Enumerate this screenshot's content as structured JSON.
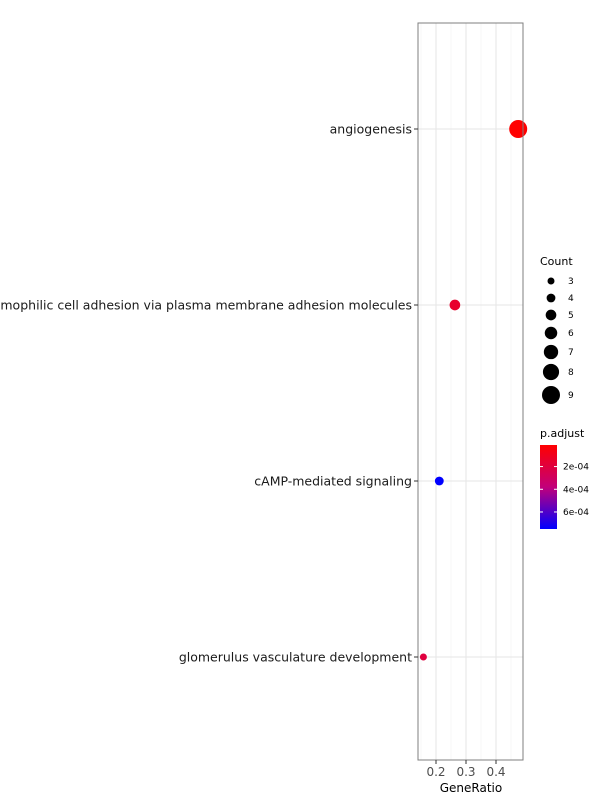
{
  "chart_data": {
    "type": "scatter",
    "title": "",
    "xlabel": "GeneRatio",
    "ylabel": "",
    "xlim": [
      0.14,
      0.49
    ],
    "x_ticks": [
      0.2,
      0.3,
      0.4
    ],
    "x_tick_labels": [
      "0.2",
      "0.3",
      "0.4"
    ],
    "grid": true,
    "categories": [
      "angiogenesis",
      "homophilic cell adhesion via plasma membrane adhesion molecules",
      "cAMP-mediated signaling",
      "glomerulus vasculature development"
    ],
    "points": [
      {
        "term": "angiogenesis",
        "gene_ratio": 0.474,
        "count": 9,
        "p_adjust": 1e-05
      },
      {
        "term": "homophilic cell adhesion via plasma membrane adhesion molecules",
        "gene_ratio": 0.263,
        "count": 5,
        "p_adjust": 0.00015
      },
      {
        "term": "cAMP-mediated signaling",
        "gene_ratio": 0.211,
        "count": 4,
        "p_adjust": 0.00075
      },
      {
        "term": "glomerulus vasculature development",
        "gene_ratio": 0.158,
        "count": 3,
        "p_adjust": 0.0002
      }
    ],
    "size_legend": {
      "title": "Count",
      "values": [
        3,
        4,
        5,
        6,
        7,
        8,
        9
      ],
      "labels": [
        "3",
        "4",
        "5",
        "6",
        "7",
        "8",
        "9"
      ]
    },
    "color_legend": {
      "title": "p.adjust",
      "range": [
        1e-05,
        0.00075
      ],
      "ticks": [
        0.0002,
        0.0004,
        0.0006
      ],
      "tick_labels": [
        "2e-04",
        "4e-04",
        "6e-04"
      ],
      "low_color": "#ff0000",
      "high_color": "#0000ff"
    },
    "legend_position": "right"
  }
}
